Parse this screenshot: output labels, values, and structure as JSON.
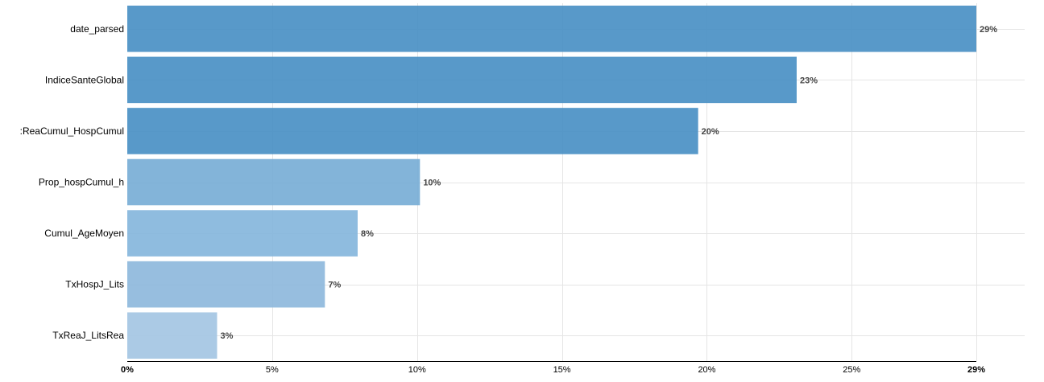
{
  "chart_data": {
    "type": "bar",
    "orientation": "horizontal",
    "categories": [
      "date_parsed",
      "IndiceSanteGlobal",
      ":ReaCumul_HospCumul",
      "Prop_hospCumul_h",
      "Cumul_AgeMoyen",
      "TxHospJ_Lits",
      "TxReaJ_LitsRea"
    ],
    "values": [
      29.3,
      23.1,
      19.7,
      10.1,
      7.95,
      6.82,
      3.1
    ],
    "value_labels": [
      "29%",
      "23%",
      "20%",
      "10%",
      "8%",
      "7%",
      "3%"
    ],
    "xlim": [
      0,
      29.3
    ],
    "x_ticks": [
      {
        "value": 0,
        "label": "0%"
      },
      {
        "value": 5,
        "label": "5%"
      },
      {
        "value": 10,
        "label": "10%"
      },
      {
        "value": 15,
        "label": "15%"
      },
      {
        "value": 20,
        "label": "20%"
      },
      {
        "value": 25,
        "label": "25%"
      },
      {
        "value": 29.3,
        "label": "29%"
      }
    ],
    "bar_colors": [
      "#4a90c4",
      "#4a90c4",
      "#4a90c4",
      "#78aed6",
      "#86b6dc",
      "#8eb9dc",
      "#a4c6e3"
    ],
    "grid": true,
    "legend": "none",
    "title": "",
    "xlabel": "",
    "ylabel": ""
  }
}
